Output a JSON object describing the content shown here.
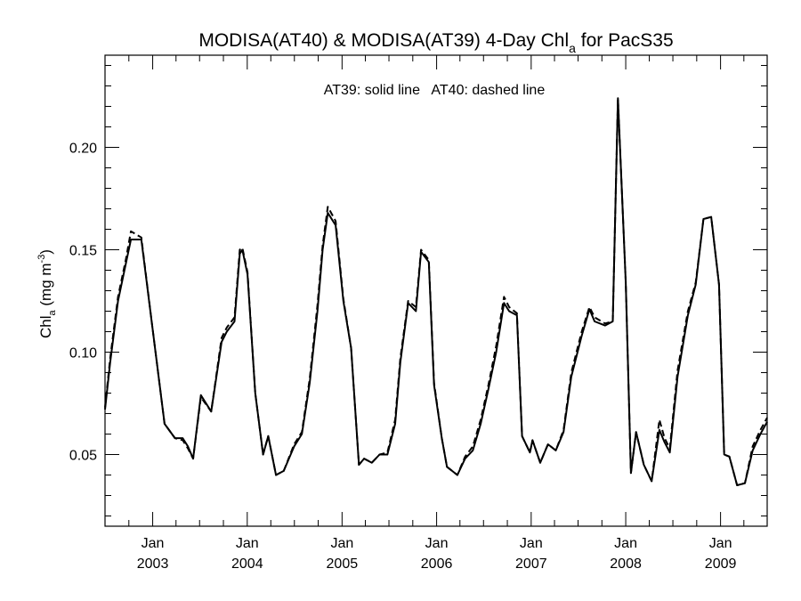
{
  "chart_data": {
    "type": "line",
    "title_main": "MODISA(AT40) & MODISA(AT39) 4-Day Chl",
    "title_sub": "a",
    "title_tail": " for PacS35",
    "annotation": "AT39: solid line   AT40: dashed line",
    "ylabel_main": "Chl",
    "ylabel_sub": "a",
    "ylabel_tail": " (mg m",
    "ylabel_sup": "-3",
    "ylabel_close": ")",
    "ylim": [
      0.015,
      0.245
    ],
    "xlim": [
      "2002-07-01",
      "2009-06-30"
    ],
    "yticks": [
      {
        "value": 0.05,
        "label": "0.05"
      },
      {
        "value": 0.1,
        "label": "0.10"
      },
      {
        "value": 0.15,
        "label": "0.15"
      },
      {
        "value": 0.2,
        "label": "0.20"
      }
    ],
    "xticks": [
      {
        "date": "2003-01-01",
        "month": "Jan",
        "year": "2003"
      },
      {
        "date": "2004-01-01",
        "month": "Jan",
        "year": "2004"
      },
      {
        "date": "2005-01-01",
        "month": "Jan",
        "year": "2005"
      },
      {
        "date": "2006-01-01",
        "month": "Jan",
        "year": "2006"
      },
      {
        "date": "2007-01-01",
        "month": "Jan",
        "year": "2007"
      },
      {
        "date": "2008-01-01",
        "month": "Jan",
        "year": "2008"
      },
      {
        "date": "2009-01-01",
        "month": "Jan",
        "year": "2009"
      }
    ],
    "series": [
      {
        "name": "AT39",
        "style": "solid",
        "color": "#000000",
        "points": [
          [
            "2002-07-01",
            0.072
          ],
          [
            "2002-07-21",
            0.095
          ],
          [
            "2002-08-20",
            0.125
          ],
          [
            "2002-09-19",
            0.143
          ],
          [
            "2002-10-09",
            0.155
          ],
          [
            "2002-11-18",
            0.155
          ],
          [
            "2002-12-28",
            0.115
          ],
          [
            "2003-01-27",
            0.085
          ],
          [
            "2003-02-16",
            0.065
          ],
          [
            "2003-03-28",
            0.058
          ],
          [
            "2003-04-27",
            0.058
          ],
          [
            "2003-05-17",
            0.054
          ],
          [
            "2003-06-06",
            0.048
          ],
          [
            "2003-07-06",
            0.079
          ],
          [
            "2003-08-15",
            0.071
          ],
          [
            "2003-09-24",
            0.105
          ],
          [
            "2003-10-14",
            0.11
          ],
          [
            "2003-11-13",
            0.115
          ],
          [
            "2003-12-03",
            0.148
          ],
          [
            "2003-12-13",
            0.15
          ],
          [
            "2004-01-02",
            0.138
          ],
          [
            "2004-02-01",
            0.08
          ],
          [
            "2004-03-02",
            0.05
          ],
          [
            "2004-03-22",
            0.059
          ],
          [
            "2004-04-21",
            0.04
          ],
          [
            "2004-05-21",
            0.042
          ],
          [
            "2004-06-30",
            0.054
          ],
          [
            "2004-07-30",
            0.06
          ],
          [
            "2004-08-29",
            0.085
          ],
          [
            "2004-09-28",
            0.12
          ],
          [
            "2004-10-18",
            0.15
          ],
          [
            "2004-11-07",
            0.168
          ],
          [
            "2004-12-07",
            0.162
          ],
          [
            "2005-01-06",
            0.125
          ],
          [
            "2005-02-05",
            0.102
          ],
          [
            "2005-03-07",
            0.045
          ],
          [
            "2005-03-27",
            0.048
          ],
          [
            "2005-04-26",
            0.046
          ],
          [
            "2005-05-26",
            0.05
          ],
          [
            "2005-06-25",
            0.05
          ],
          [
            "2005-07-25",
            0.065
          ],
          [
            "2005-08-14",
            0.095
          ],
          [
            "2005-09-13",
            0.124
          ],
          [
            "2005-10-13",
            0.12
          ],
          [
            "2005-11-02",
            0.149
          ],
          [
            "2005-12-02",
            0.144
          ],
          [
            "2005-12-22",
            0.084
          ],
          [
            "2006-01-21",
            0.058
          ],
          [
            "2006-02-10",
            0.044
          ],
          [
            "2006-03-22",
            0.04
          ],
          [
            "2006-04-21",
            0.048
          ],
          [
            "2006-05-21",
            0.052
          ],
          [
            "2006-06-20",
            0.065
          ],
          [
            "2006-07-20",
            0.082
          ],
          [
            "2006-08-19",
            0.1
          ],
          [
            "2006-09-18",
            0.124
          ],
          [
            "2006-10-08",
            0.12
          ],
          [
            "2006-11-07",
            0.118
          ],
          [
            "2006-11-27",
            0.059
          ],
          [
            "2006-12-27",
            0.051
          ],
          [
            "2007-01-06",
            0.057
          ],
          [
            "2007-02-05",
            0.046
          ],
          [
            "2007-03-07",
            0.055
          ],
          [
            "2007-04-06",
            0.052
          ],
          [
            "2007-05-06",
            0.061
          ],
          [
            "2007-06-05",
            0.088
          ],
          [
            "2007-07-15",
            0.108
          ],
          [
            "2007-08-14",
            0.121
          ],
          [
            "2007-09-03",
            0.115
          ],
          [
            "2007-10-13",
            0.113
          ],
          [
            "2007-11-12",
            0.115
          ],
          [
            "2007-12-02",
            0.224
          ],
          [
            "2008-01-01",
            0.134
          ],
          [
            "2008-01-21",
            0.041
          ],
          [
            "2008-02-10",
            0.061
          ],
          [
            "2008-03-11",
            0.045
          ],
          [
            "2008-04-10",
            0.037
          ],
          [
            "2008-05-10",
            0.062
          ],
          [
            "2008-05-30",
            0.056
          ],
          [
            "2008-06-19",
            0.051
          ],
          [
            "2008-07-19",
            0.088
          ],
          [
            "2008-08-28",
            0.118
          ],
          [
            "2008-09-27",
            0.133
          ],
          [
            "2008-10-27",
            0.165
          ],
          [
            "2008-11-26",
            0.166
          ],
          [
            "2008-12-26",
            0.133
          ],
          [
            "2009-01-15",
            0.05
          ],
          [
            "2009-02-04",
            0.049
          ],
          [
            "2009-03-06",
            0.035
          ],
          [
            "2009-04-05",
            0.036
          ],
          [
            "2009-05-05",
            0.052
          ],
          [
            "2009-06-04",
            0.06
          ],
          [
            "2009-06-30",
            0.066
          ]
        ]
      },
      {
        "name": "AT40",
        "style": "dashed",
        "color": "#000000",
        "points": [
          [
            "2002-07-01",
            0.073
          ],
          [
            "2002-07-21",
            0.097
          ],
          [
            "2002-08-20",
            0.127
          ],
          [
            "2002-09-19",
            0.145
          ],
          [
            "2002-10-09",
            0.159
          ],
          [
            "2002-11-18",
            0.156
          ],
          [
            "2002-12-28",
            0.115
          ],
          [
            "2003-01-27",
            0.085
          ],
          [
            "2003-02-16",
            0.065
          ],
          [
            "2003-03-28",
            0.058
          ],
          [
            "2003-04-27",
            0.057
          ],
          [
            "2003-05-17",
            0.053
          ],
          [
            "2003-06-06",
            0.048
          ],
          [
            "2003-07-06",
            0.078
          ],
          [
            "2003-08-15",
            0.071
          ],
          [
            "2003-09-24",
            0.107
          ],
          [
            "2003-10-14",
            0.112
          ],
          [
            "2003-11-13",
            0.117
          ],
          [
            "2003-12-03",
            0.15
          ],
          [
            "2003-12-13",
            0.151
          ],
          [
            "2004-01-02",
            0.139
          ],
          [
            "2004-02-01",
            0.08
          ],
          [
            "2004-03-02",
            0.05
          ],
          [
            "2004-03-22",
            0.059
          ],
          [
            "2004-04-21",
            0.04
          ],
          [
            "2004-05-21",
            0.042
          ],
          [
            "2004-06-30",
            0.055
          ],
          [
            "2004-07-30",
            0.061
          ],
          [
            "2004-08-29",
            0.087
          ],
          [
            "2004-09-28",
            0.123
          ],
          [
            "2004-10-18",
            0.152
          ],
          [
            "2004-11-07",
            0.171
          ],
          [
            "2004-12-07",
            0.164
          ],
          [
            "2005-01-06",
            0.126
          ],
          [
            "2005-02-05",
            0.102
          ],
          [
            "2005-03-07",
            0.045
          ],
          [
            "2005-03-27",
            0.048
          ],
          [
            "2005-04-26",
            0.046
          ],
          [
            "2005-05-26",
            0.05
          ],
          [
            "2005-06-25",
            0.051
          ],
          [
            "2005-07-25",
            0.067
          ],
          [
            "2005-08-14",
            0.097
          ],
          [
            "2005-09-13",
            0.125
          ],
          [
            "2005-10-13",
            0.122
          ],
          [
            "2005-11-02",
            0.15
          ],
          [
            "2005-12-02",
            0.145
          ],
          [
            "2005-12-22",
            0.085
          ],
          [
            "2006-01-21",
            0.058
          ],
          [
            "2006-02-10",
            0.044
          ],
          [
            "2006-03-22",
            0.04
          ],
          [
            "2006-04-21",
            0.049
          ],
          [
            "2006-05-21",
            0.054
          ],
          [
            "2006-06-20",
            0.067
          ],
          [
            "2006-07-20",
            0.084
          ],
          [
            "2006-08-19",
            0.103
          ],
          [
            "2006-09-18",
            0.127
          ],
          [
            "2006-10-08",
            0.122
          ],
          [
            "2006-11-07",
            0.119
          ],
          [
            "2006-11-27",
            0.059
          ],
          [
            "2006-12-27",
            0.051
          ],
          [
            "2007-01-06",
            0.057
          ],
          [
            "2007-02-05",
            0.046
          ],
          [
            "2007-03-07",
            0.055
          ],
          [
            "2007-04-06",
            0.052
          ],
          [
            "2007-05-06",
            0.062
          ],
          [
            "2007-06-05",
            0.09
          ],
          [
            "2007-07-15",
            0.11
          ],
          [
            "2007-08-14",
            0.122
          ],
          [
            "2007-09-03",
            0.117
          ],
          [
            "2007-10-13",
            0.114
          ],
          [
            "2007-11-12",
            0.115
          ],
          [
            "2007-12-02",
            0.224
          ],
          [
            "2008-01-01",
            0.134
          ],
          [
            "2008-01-21",
            0.041
          ],
          [
            "2008-02-10",
            0.061
          ],
          [
            "2008-03-11",
            0.045
          ],
          [
            "2008-04-10",
            0.037
          ],
          [
            "2008-05-10",
            0.067
          ],
          [
            "2008-05-30",
            0.058
          ],
          [
            "2008-06-19",
            0.053
          ],
          [
            "2008-07-19",
            0.091
          ],
          [
            "2008-08-28",
            0.12
          ],
          [
            "2008-09-27",
            0.134
          ],
          [
            "2008-10-27",
            0.165
          ],
          [
            "2008-11-26",
            0.166
          ],
          [
            "2008-12-26",
            0.133
          ],
          [
            "2009-01-15",
            0.05
          ],
          [
            "2009-02-04",
            0.049
          ],
          [
            "2009-03-06",
            0.035
          ],
          [
            "2009-04-05",
            0.036
          ],
          [
            "2009-05-05",
            0.054
          ],
          [
            "2009-06-04",
            0.062
          ],
          [
            "2009-06-30",
            0.068
          ]
        ]
      }
    ]
  }
}
